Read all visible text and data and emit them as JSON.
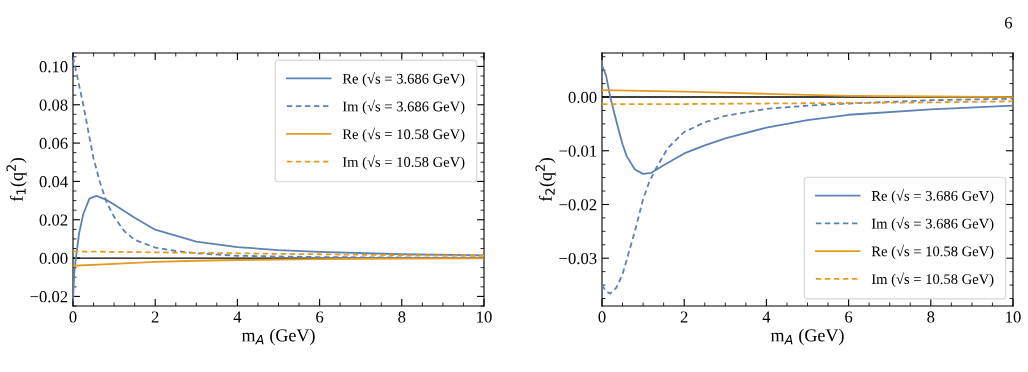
{
  "chart_data": [
    {
      "type": "line",
      "xlabel": "m$_{A}$ (GeV)",
      "ylabel": "f$_{1}$(q$^{2}$)",
      "xlim": [
        0,
        10
      ],
      "xticks": [
        0,
        2,
        4,
        6,
        8,
        10
      ],
      "ylim": [
        -0.025,
        0.107
      ],
      "yticks": [
        {
          "value": -0.02,
          "label": "−0.02"
        },
        {
          "value": 0.0,
          "label": "0.00"
        },
        {
          "value": 0.02,
          "label": "0.02"
        },
        {
          "value": 0.04,
          "label": "0.04"
        },
        {
          "value": 0.06,
          "label": "0.06"
        },
        {
          "value": 0.08,
          "label": "0.08"
        },
        {
          "value": 0.1,
          "label": "0.10"
        }
      ],
      "grid": false,
      "legend": "top right",
      "ref_lines": [
        {
          "axis": "y",
          "value": 0,
          "color": "#000000",
          "line_style": "solid"
        }
      ],
      "series": [
        {
          "name": "Re (√s = 3.686 GeV)",
          "color": "#5e81b5",
          "line_style": "solid",
          "x": [
            0,
            0.03,
            0.07,
            0.15,
            0.25,
            0.4,
            0.57,
            0.8,
            1.0,
            1.5,
            2,
            3,
            4,
            5,
            6,
            8,
            10
          ],
          "values": [
            -0.022,
            -0.008,
            0.0,
            0.013,
            0.023,
            0.031,
            0.0325,
            0.0305,
            0.028,
            0.021,
            0.0148,
            0.0086,
            0.0057,
            0.0042,
            0.0032,
            0.002,
            0.0014
          ]
        },
        {
          "name": "Im (√s = 3.686 GeV)",
          "color": "#5e81b5",
          "line_style": "dashed",
          "x": [
            0,
            0.1,
            0.25,
            0.4,
            0.5,
            0.65,
            0.8,
            1.0,
            1.25,
            1.5,
            2,
            2.5,
            3,
            4,
            6,
            8,
            10
          ],
          "values": [
            0.105,
            0.095,
            0.08,
            0.063,
            0.052,
            0.04,
            0.03,
            0.0215,
            0.014,
            0.0095,
            0.0055,
            0.0037,
            0.0025,
            0.0012,
            0.0005,
            0.0003,
            0.0002
          ]
        },
        {
          "name": "Re (√s = 10.58 GeV)",
          "color": "#e19c24",
          "line_style": "solid",
          "x": [
            0,
            1,
            2,
            3,
            4,
            6,
            8,
            10
          ],
          "values": [
            -0.004,
            -0.003,
            -0.002,
            -0.0014,
            -0.001,
            -0.0005,
            -0.0003,
            -0.0002
          ]
        },
        {
          "name": "Im (√s = 10.58 GeV)",
          "color": "#e19c24",
          "line_style": "dashed",
          "x": [
            0,
            2,
            4,
            5,
            6,
            8,
            10
          ],
          "values": [
            0.0035,
            0.003,
            0.0025,
            0.0022,
            0.002,
            0.0015,
            0.0012
          ]
        }
      ]
    },
    {
      "type": "line",
      "xlabel": "m$_{A}$ (GeV)",
      "ylabel": "f$_{2}$(q$^{2}$)",
      "xlim": [
        0,
        10
      ],
      "xticks": [
        0,
        2,
        4,
        6,
        8,
        10
      ],
      "ylim": [
        -0.0389,
        0.0082
      ],
      "yticks": [
        {
          "value": -0.03,
          "label": "−0.03"
        },
        {
          "value": -0.02,
          "label": "−0.02"
        },
        {
          "value": -0.01,
          "label": "−0.01"
        },
        {
          "value": 0.0,
          "label": "0.00"
        }
      ],
      "grid": false,
      "legend": "bottom right",
      "annotations": [
        "6"
      ],
      "ref_lines": [
        {
          "axis": "y",
          "value": 0,
          "color": "#000000",
          "line_style": "solid"
        }
      ],
      "series": [
        {
          "name": "Re (√s = 3.686 GeV)",
          "color": "#5e81b5",
          "line_style": "solid",
          "x": [
            0,
            0.1,
            0.2,
            0.3,
            0.4,
            0.5,
            0.6,
            0.8,
            1.0,
            1.2,
            1.5,
            2,
            2.5,
            3,
            4,
            5,
            6,
            8,
            10
          ],
          "values": [
            0.0059,
            0.004,
            0.0,
            -0.003,
            -0.006,
            -0.0088,
            -0.011,
            -0.0135,
            -0.0143,
            -0.0141,
            -0.0127,
            -0.0105,
            -0.009,
            -0.0077,
            -0.0057,
            -0.0043,
            -0.0033,
            -0.0023,
            -0.0016
          ]
        },
        {
          "name": "Im (√s = 3.686 GeV)",
          "color": "#5e81b5",
          "line_style": "dashed",
          "x": [
            0,
            0.1,
            0.2,
            0.35,
            0.5,
            0.65,
            0.8,
            1.0,
            1.15,
            1.3,
            1.6,
            2,
            2.5,
            3,
            4,
            5,
            6,
            8,
            10
          ],
          "values": [
            -0.035,
            -0.0362,
            -0.0366,
            -0.0355,
            -0.033,
            -0.029,
            -0.025,
            -0.019,
            -0.0158,
            -0.0135,
            -0.0095,
            -0.0065,
            -0.0047,
            -0.0035,
            -0.0022,
            -0.0016,
            -0.0012,
            -0.0006,
            -0.0003
          ]
        },
        {
          "name": "Re (√s = 10.58 GeV)",
          "color": "#e19c24",
          "line_style": "solid",
          "x": [
            0,
            2,
            4,
            6,
            8,
            10
          ],
          "values": [
            0.0013,
            0.001,
            0.0006,
            0.0002,
            0.0001,
            0.0
          ]
        },
        {
          "name": "Im (√s = 10.58 GeV)",
          "color": "#e19c24",
          "line_style": "dashed",
          "x": [
            0,
            2,
            4,
            6,
            8,
            10
          ],
          "values": [
            -0.0013,
            -0.0013,
            -0.0012,
            -0.0011,
            -0.001,
            -0.0008
          ]
        }
      ]
    }
  ]
}
